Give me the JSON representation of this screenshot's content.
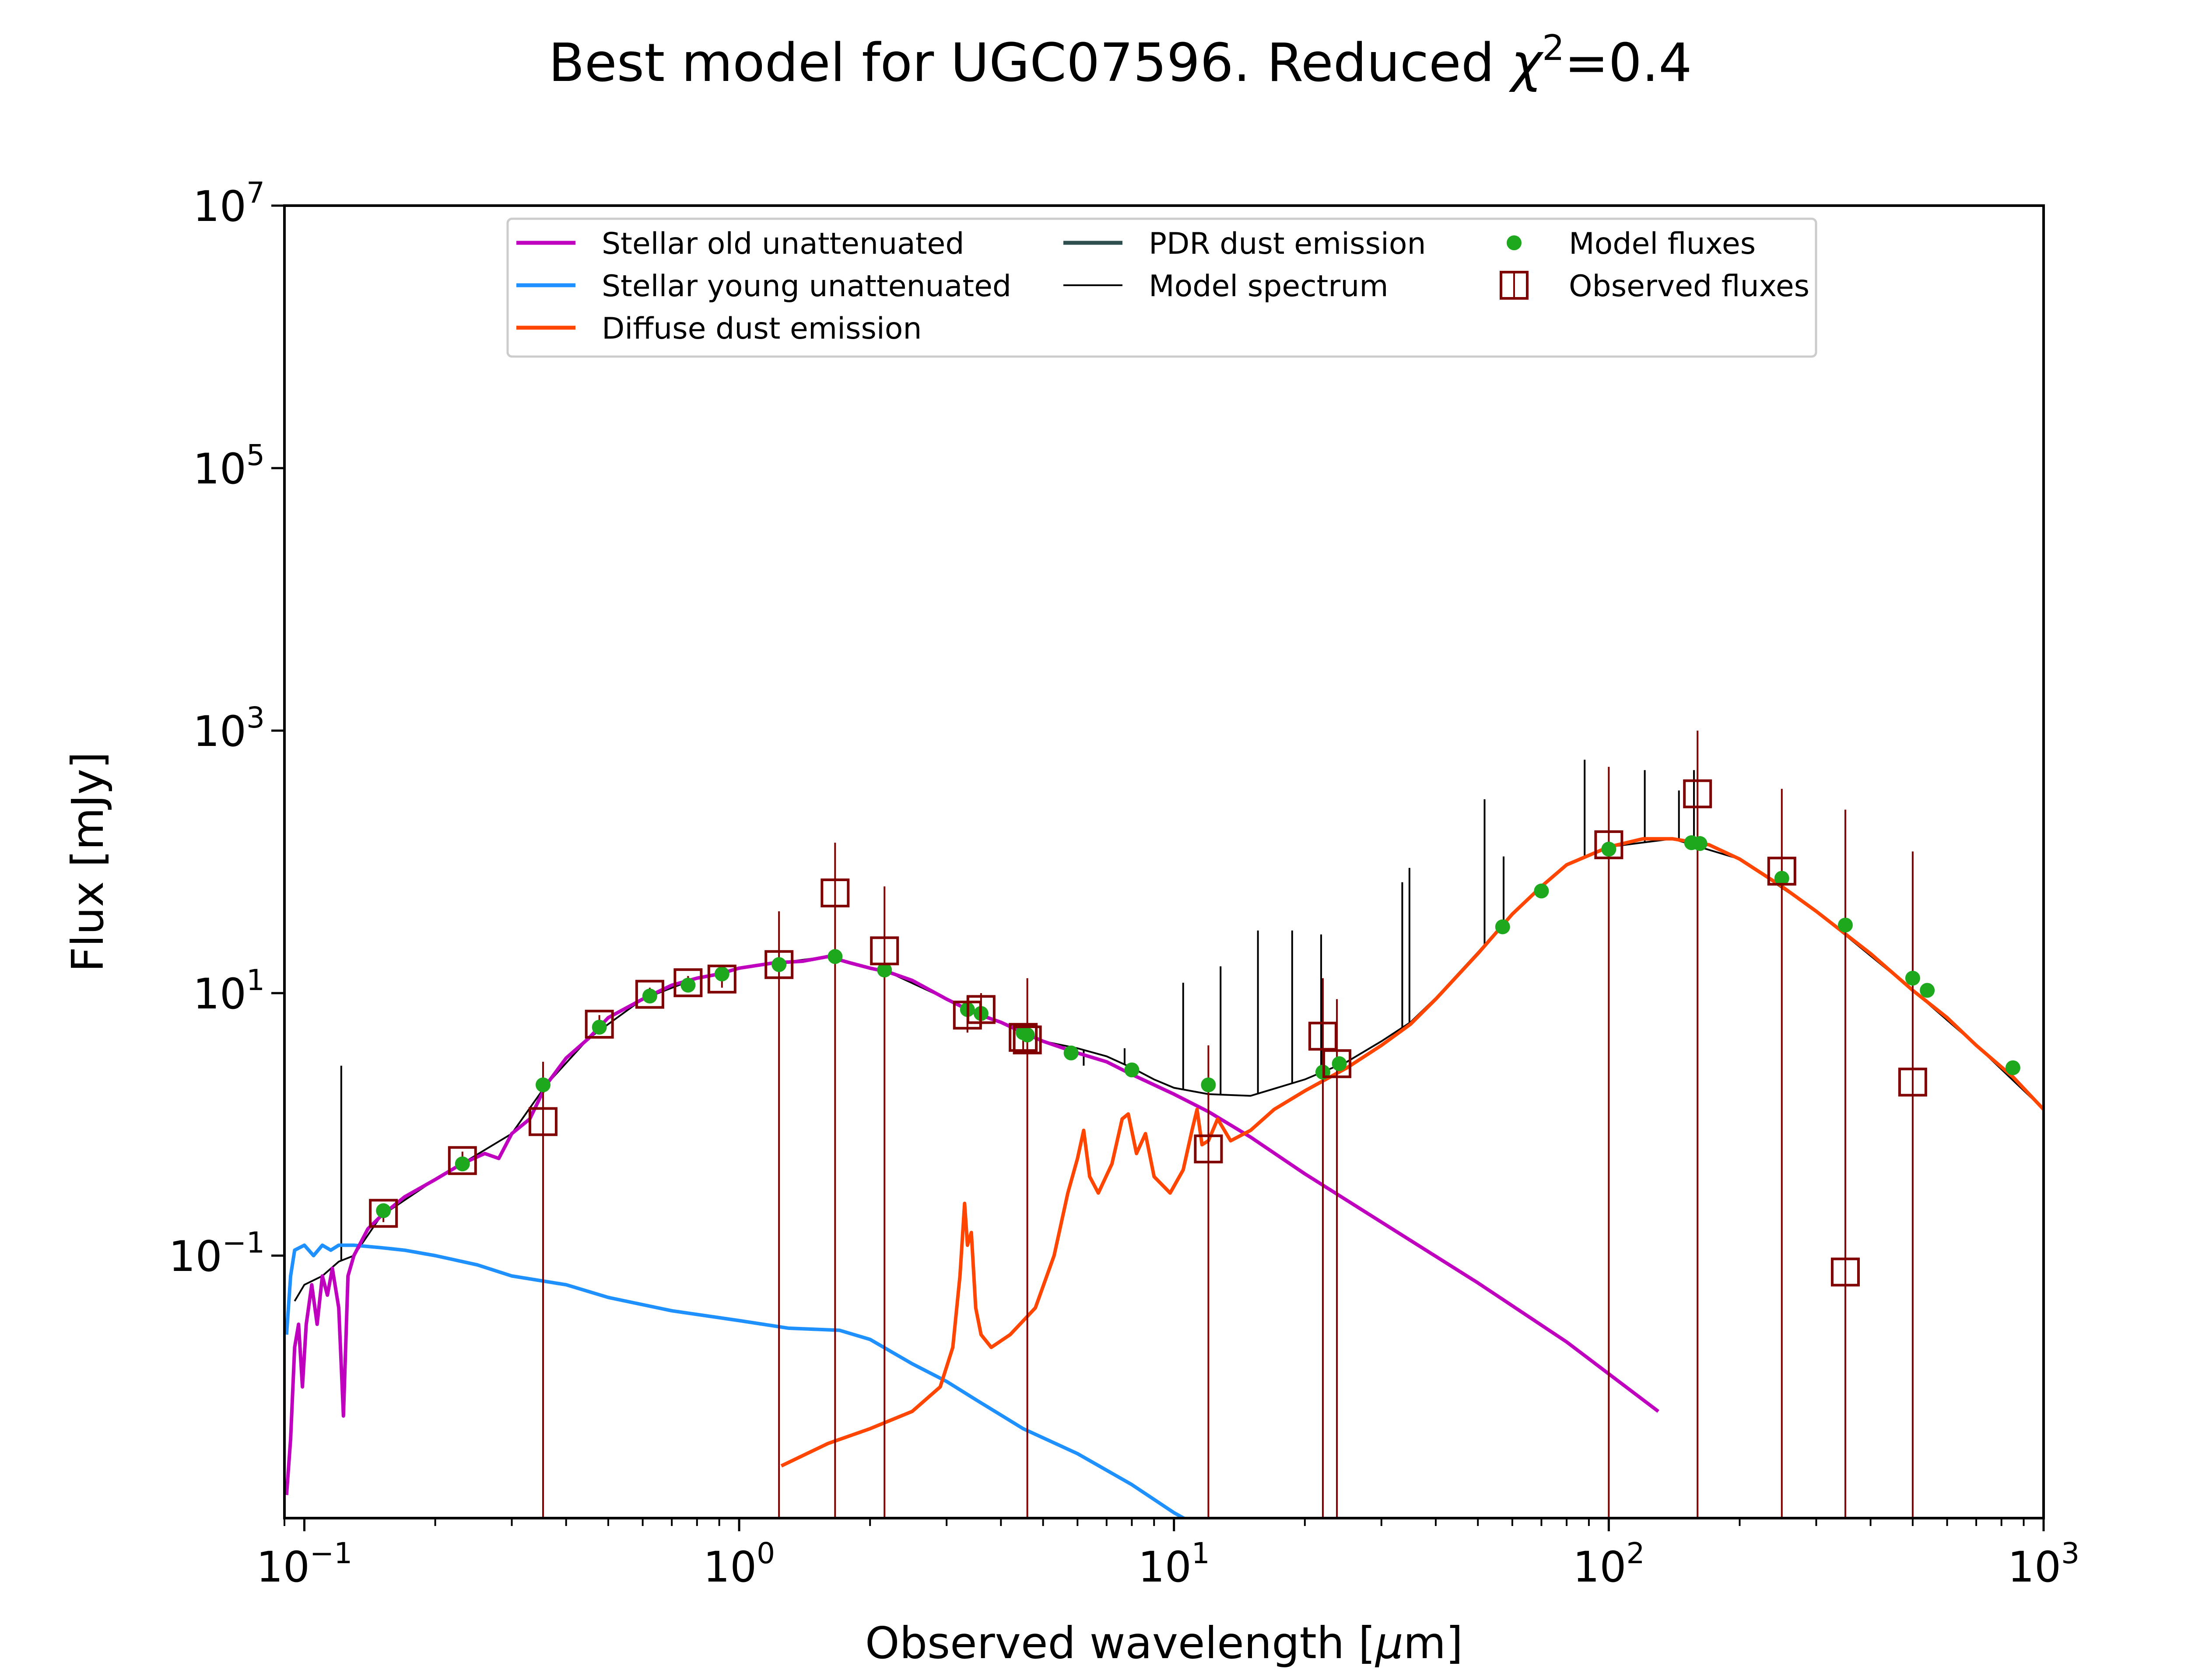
{
  "chart_data": {
    "type": "line",
    "title": {
      "main": "Best model for UGC07596. Reduced ",
      "chi": "χ",
      "sup": "2",
      "tail": "=0.4"
    },
    "xlabel": {
      "main": "Observed wavelength [",
      "mu": "μ",
      "unit": "m]"
    },
    "ylabel": "Flux [mJy]",
    "xscale": "log",
    "yscale": "log",
    "xlim": [
      0.09,
      1000
    ],
    "ylim": [
      0.001,
      10000000
    ],
    "x_ticks": [
      {
        "value": 0.1,
        "base": "10",
        "exp": "−1"
      },
      {
        "value": 1,
        "base": "10",
        "exp": "0"
      },
      {
        "value": 10,
        "base": "10",
        "exp": "1"
      },
      {
        "value": 100,
        "base": "10",
        "exp": "2"
      },
      {
        "value": 1000,
        "base": "10",
        "exp": "3"
      }
    ],
    "y_ticks": [
      {
        "value": 0.1,
        "base": "10",
        "exp": "−1"
      },
      {
        "value": 10,
        "base": "10",
        "exp": "1"
      },
      {
        "value": 1000,
        "base": "10",
        "exp": "3"
      },
      {
        "value": 100000,
        "base": "10",
        "exp": "5"
      },
      {
        "value": 10000000,
        "base": "10",
        "exp": "7"
      }
    ],
    "legend_position": "top",
    "legend": [
      {
        "label": "Stellar old unattenuated",
        "color": "#bf00bf",
        "kind": "line"
      },
      {
        "label": "Stellar young unattenuated",
        "color": "#1e90ff",
        "kind": "line"
      },
      {
        "label": "Diffuse dust emission",
        "color": "#ff4500",
        "kind": "line"
      },
      {
        "label": "PDR dust emission",
        "color": "#2f4f4f",
        "kind": "line"
      },
      {
        "label": "Model spectrum",
        "color": "#000000",
        "kind": "thin-line"
      },
      {
        "label": "Model fluxes",
        "color": "#1ea81e",
        "kind": "dot"
      },
      {
        "label": "Observed fluxes",
        "color": "#800000",
        "kind": "square"
      }
    ],
    "series": [
      {
        "name": "Stellar old unattenuated",
        "color": "#bf00bf",
        "points": [
          [
            0.091,
            0.0015
          ],
          [
            0.093,
            0.004
          ],
          [
            0.095,
            0.02
          ],
          [
            0.097,
            0.03
          ],
          [
            0.099,
            0.01
          ],
          [
            0.101,
            0.03
          ],
          [
            0.104,
            0.06
          ],
          [
            0.107,
            0.03
          ],
          [
            0.11,
            0.07
          ],
          [
            0.113,
            0.05
          ],
          [
            0.116,
            0.08
          ],
          [
            0.12,
            0.04
          ],
          [
            0.123,
            0.006
          ],
          [
            0.126,
            0.07
          ],
          [
            0.13,
            0.1
          ],
          [
            0.14,
            0.16
          ],
          [
            0.15,
            0.2
          ],
          [
            0.17,
            0.28
          ],
          [
            0.2,
            0.38
          ],
          [
            0.23,
            0.5
          ],
          [
            0.26,
            0.6
          ],
          [
            0.28,
            0.55
          ],
          [
            0.3,
            0.85
          ],
          [
            0.33,
            1.1
          ],
          [
            0.36,
            2.0
          ],
          [
            0.4,
            3.2
          ],
          [
            0.45,
            4.5
          ],
          [
            0.5,
            6.5
          ],
          [
            0.6,
            9
          ],
          [
            0.7,
            11.5
          ],
          [
            0.8,
            13
          ],
          [
            0.9,
            14
          ],
          [
            1.0,
            15.5
          ],
          [
            1.2,
            17
          ],
          [
            1.4,
            17.5
          ],
          [
            1.6,
            19
          ],
          [
            1.8,
            17
          ],
          [
            2.0,
            15.5
          ],
          [
            2.2,
            14.5
          ],
          [
            2.5,
            12.5
          ],
          [
            3.0,
            9
          ],
          [
            3.5,
            7
          ],
          [
            4.0,
            6
          ],
          [
            4.5,
            5
          ],
          [
            5,
            4.3
          ],
          [
            6,
            3.5
          ],
          [
            7,
            3
          ],
          [
            8,
            2.4
          ],
          [
            10,
            1.7
          ],
          [
            12,
            1.25
          ],
          [
            15,
            0.8
          ],
          [
            20,
            0.42
          ],
          [
            30,
            0.18
          ],
          [
            50,
            0.062
          ],
          [
            80,
            0.022
          ],
          [
            130,
            0.0065
          ]
        ]
      },
      {
        "name": "Stellar young unattenuated",
        "color": "#1e90ff",
        "points": [
          [
            0.091,
            0.025
          ],
          [
            0.093,
            0.07
          ],
          [
            0.095,
            0.11
          ],
          [
            0.1,
            0.12
          ],
          [
            0.105,
            0.1
          ],
          [
            0.11,
            0.12
          ],
          [
            0.115,
            0.11
          ],
          [
            0.12,
            0.12
          ],
          [
            0.13,
            0.12
          ],
          [
            0.15,
            0.115
          ],
          [
            0.17,
            0.11
          ],
          [
            0.2,
            0.1
          ],
          [
            0.25,
            0.085
          ],
          [
            0.3,
            0.07
          ],
          [
            0.4,
            0.06
          ],
          [
            0.5,
            0.048
          ],
          [
            0.7,
            0.038
          ],
          [
            1.0,
            0.032
          ],
          [
            1.3,
            0.028
          ],
          [
            1.7,
            0.027
          ],
          [
            2.0,
            0.023
          ],
          [
            2.5,
            0.015
          ],
          [
            3.0,
            0.011
          ],
          [
            3.5,
            0.008
          ],
          [
            4.5,
            0.0048
          ],
          [
            6,
            0.0031
          ],
          [
            8,
            0.0018
          ],
          [
            10,
            0.0011
          ],
          [
            11.5,
            0.00085
          ]
        ]
      },
      {
        "name": "Diffuse dust emission",
        "color": "#ff4500",
        "points": [
          [
            1.25,
            0.0025
          ],
          [
            1.6,
            0.0037
          ],
          [
            2,
            0.0048
          ],
          [
            2.5,
            0.0065
          ],
          [
            2.9,
            0.01
          ],
          [
            3.1,
            0.02
          ],
          [
            3.22,
            0.07
          ],
          [
            3.3,
            0.25
          ],
          [
            3.35,
            0.12
          ],
          [
            3.42,
            0.15
          ],
          [
            3.5,
            0.04
          ],
          [
            3.6,
            0.025
          ],
          [
            3.8,
            0.02
          ],
          [
            4.2,
            0.025
          ],
          [
            4.8,
            0.04
          ],
          [
            5.3,
            0.1
          ],
          [
            5.7,
            0.3
          ],
          [
            6.0,
            0.55
          ],
          [
            6.2,
            0.9
          ],
          [
            6.4,
            0.4
          ],
          [
            6.7,
            0.3
          ],
          [
            7.2,
            0.5
          ],
          [
            7.6,
            1.1
          ],
          [
            7.85,
            1.2
          ],
          [
            8.2,
            0.6
          ],
          [
            8.6,
            0.85
          ],
          [
            9.0,
            0.4
          ],
          [
            9.8,
            0.3
          ],
          [
            10.5,
            0.45
          ],
          [
            11.0,
            0.9
          ],
          [
            11.3,
            1.3
          ],
          [
            11.6,
            0.7
          ],
          [
            12.0,
            0.75
          ],
          [
            12.6,
            1.1
          ],
          [
            13.5,
            0.75
          ],
          [
            15,
            0.9
          ],
          [
            17,
            1.3
          ],
          [
            20,
            1.8
          ],
          [
            25,
            2.7
          ],
          [
            30,
            4
          ],
          [
            35,
            5.8
          ],
          [
            40,
            9
          ],
          [
            50,
            20
          ],
          [
            60,
            40
          ],
          [
            70,
            65
          ],
          [
            80,
            95
          ],
          [
            100,
            130
          ],
          [
            120,
            150
          ],
          [
            140,
            150
          ],
          [
            170,
            135
          ],
          [
            200,
            105
          ],
          [
            250,
            65
          ],
          [
            300,
            42
          ],
          [
            400,
            20
          ],
          [
            500,
            10.5
          ],
          [
            600,
            6.5
          ],
          [
            700,
            4
          ],
          [
            850,
            2.3
          ],
          [
            1000,
            1.3
          ]
        ]
      },
      {
        "name": "Model spectrum",
        "color": "#000000",
        "points": [
          [
            0.095,
            0.045
          ],
          [
            0.1,
            0.06
          ],
          [
            0.11,
            0.07
          ],
          [
            0.12,
            0.09
          ],
          [
            0.13,
            0.1
          ],
          [
            0.15,
            0.2
          ],
          [
            0.2,
            0.38
          ],
          [
            0.23,
            0.5
          ],
          [
            0.3,
            0.85
          ],
          [
            0.36,
            2.0
          ],
          [
            0.45,
            4.5
          ],
          [
            0.6,
            9
          ],
          [
            0.8,
            13
          ],
          [
            1.0,
            15.5
          ],
          [
            1.6,
            19
          ],
          [
            2.2,
            14.5
          ],
          [
            3.0,
            9
          ],
          [
            4.0,
            6
          ],
          [
            5,
            4.3
          ],
          [
            6,
            3.8
          ],
          [
            7,
            3.3
          ],
          [
            8,
            2.7
          ],
          [
            9,
            2.2
          ],
          [
            10,
            1.9
          ],
          [
            12,
            1.7
          ],
          [
            15,
            1.65
          ],
          [
            20,
            2.2
          ],
          [
            25,
            3.0
          ],
          [
            30,
            4.3
          ],
          [
            35,
            6
          ],
          [
            40,
            9.2
          ],
          [
            50,
            20.5
          ],
          [
            60,
            40.5
          ],
          [
            70,
            65.5
          ],
          [
            80,
            95.5
          ],
          [
            100,
            130
          ],
          [
            140,
            150
          ],
          [
            200,
            105
          ],
          [
            300,
            42
          ],
          [
            500,
            10.5
          ],
          [
            700,
            4
          ],
          [
            1000,
            1.3
          ]
        ]
      }
    ],
    "emission_lines": [
      [
        0.1216,
        2.8
      ],
      [
        3.3,
        8
      ],
      [
        6.2,
        2.8
      ],
      [
        7.7,
        3.8
      ],
      [
        10.5,
        12
      ],
      [
        12.8,
        16
      ],
      [
        15.6,
        30
      ],
      [
        18.7,
        30
      ],
      [
        21.8,
        28
      ],
      [
        33.5,
        70
      ],
      [
        34.8,
        90
      ],
      [
        51.8,
        300
      ],
      [
        57.3,
        110
      ],
      [
        88,
        600
      ],
      [
        121,
        500
      ],
      [
        145,
        350
      ],
      [
        157,
        500
      ]
    ],
    "observed_fluxes": [
      {
        "x": 0.152,
        "y": 0.21,
        "err": [
          0.18,
          0.25
        ]
      },
      {
        "x": 0.231,
        "y": 0.53,
        "err": [
          0.45,
          0.62
        ]
      },
      {
        "x": 0.354,
        "y": 1.05,
        "err": [
          0.001,
          3.0
        ]
      },
      {
        "x": 0.477,
        "y": 5.8,
        "err": [
          5.0,
          6.8
        ]
      },
      {
        "x": 0.623,
        "y": 9.8,
        "err": [
          8.5,
          11
        ]
      },
      {
        "x": 0.763,
        "y": 12,
        "err": [
          10.5,
          13.5
        ]
      },
      {
        "x": 0.913,
        "y": 12.8,
        "err": [
          11,
          14.5
        ]
      },
      {
        "x": 1.235,
        "y": 16.5,
        "err": [
          0.001,
          42
        ]
      },
      {
        "x": 1.662,
        "y": 58,
        "err": [
          0.001,
          140
        ]
      },
      {
        "x": 2.159,
        "y": 21,
        "err": [
          0.001,
          65
        ]
      },
      {
        "x": 3.35,
        "y": 6.8,
        "err": [
          5.0,
          9.5
        ]
      },
      {
        "x": 3.6,
        "y": 7.5,
        "err": [
          5.5,
          10
        ]
      },
      {
        "x": 4.5,
        "y": 4.6,
        "err": [
          3.5,
          5.8
        ]
      },
      {
        "x": 4.6,
        "y": 4.4,
        "err": [
          0.001,
          13
        ]
      },
      {
        "x": 12,
        "y": 0.65,
        "err": [
          0.001,
          4.0
        ]
      },
      {
        "x": 22,
        "y": 4.7,
        "err": [
          0.001,
          13
        ]
      },
      {
        "x": 23.7,
        "y": 2.9,
        "err": [
          0.001,
          9
        ]
      },
      {
        "x": 100,
        "y": 135,
        "err": [
          0.001,
          530
        ]
      },
      {
        "x": 160,
        "y": 330,
        "err": [
          0.001,
          1000
        ]
      },
      {
        "x": 250,
        "y": 85,
        "err": [
          0.001,
          360
        ]
      },
      {
        "x": 350,
        "y": 0.075,
        "err": [
          0.001,
          250
        ]
      },
      {
        "x": 500,
        "y": 2.1,
        "err": [
          0.001,
          120
        ]
      }
    ],
    "model_fluxes": [
      {
        "x": 0.152,
        "y": 0.22
      },
      {
        "x": 0.231,
        "y": 0.5
      },
      {
        "x": 0.354,
        "y": 2.0
      },
      {
        "x": 0.477,
        "y": 5.5
      },
      {
        "x": 0.623,
        "y": 9.5
      },
      {
        "x": 0.763,
        "y": 11.5
      },
      {
        "x": 0.913,
        "y": 14
      },
      {
        "x": 1.235,
        "y": 16.5
      },
      {
        "x": 1.662,
        "y": 19
      },
      {
        "x": 2.159,
        "y": 15
      },
      {
        "x": 3.35,
        "y": 7.5
      },
      {
        "x": 3.6,
        "y": 7.0
      },
      {
        "x": 4.5,
        "y": 5.0
      },
      {
        "x": 4.6,
        "y": 4.8
      },
      {
        "x": 5.8,
        "y": 3.5
      },
      {
        "x": 8.0,
        "y": 2.6
      },
      {
        "x": 12,
        "y": 2.0
      },
      {
        "x": 22,
        "y": 2.5
      },
      {
        "x": 24,
        "y": 2.9
      },
      {
        "x": 57,
        "y": 32
      },
      {
        "x": 70,
        "y": 60
      },
      {
        "x": 100,
        "y": 125
      },
      {
        "x": 155,
        "y": 140
      },
      {
        "x": 162,
        "y": 138
      },
      {
        "x": 250,
        "y": 75
      },
      {
        "x": 350,
        "y": 33
      },
      {
        "x": 500,
        "y": 13
      },
      {
        "x": 540,
        "y": 10.5
      },
      {
        "x": 850,
        "y": 2.7
      }
    ]
  }
}
